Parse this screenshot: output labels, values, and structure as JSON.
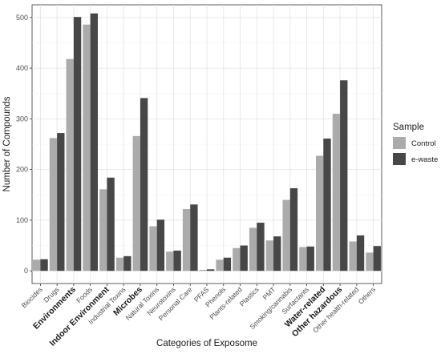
{
  "chart_data": {
    "type": "bar",
    "title": "",
    "xlabel": "Categories of Exposome",
    "ylabel": "Number of Compounds",
    "ylim": [
      -25,
      525
    ],
    "yticks": [
      0,
      100,
      200,
      300,
      400,
      500
    ],
    "grid": true,
    "legend": {
      "title": "Sample",
      "position": "right"
    },
    "categories": [
      "Biocides",
      "Drugs",
      "Environments",
      "Foods",
      "Indoor Environment",
      "Industrial Toxins",
      "Microbes",
      "Natural Toxins",
      "Neurotoxins",
      "Personal Care",
      "PFAS",
      "Phenols",
      "Plants-related",
      "Plastics",
      "PMT",
      "Smoking/cannabis",
      "Surfactants",
      "Water-related",
      "Other hazardous",
      "Other health-related",
      "Others"
    ],
    "bold_categories": [
      "Environments",
      "Indoor Environment",
      "Microbes",
      "Water-related",
      "Other hazardous"
    ],
    "series": [
      {
        "name": "Control",
        "color": "#ababab",
        "values": [
          22,
          262,
          418,
          486,
          161,
          26,
          266,
          88,
          38,
          122,
          2,
          22,
          45,
          85,
          60,
          140,
          47,
          227,
          310,
          58,
          36
        ]
      },
      {
        "name": "e-waste",
        "color": "#474747",
        "values": [
          23,
          272,
          501,
          508,
          184,
          29,
          341,
          101,
          40,
          131,
          3,
          26,
          50,
          95,
          68,
          163,
          48,
          261,
          376,
          70,
          49
        ]
      }
    ]
  }
}
